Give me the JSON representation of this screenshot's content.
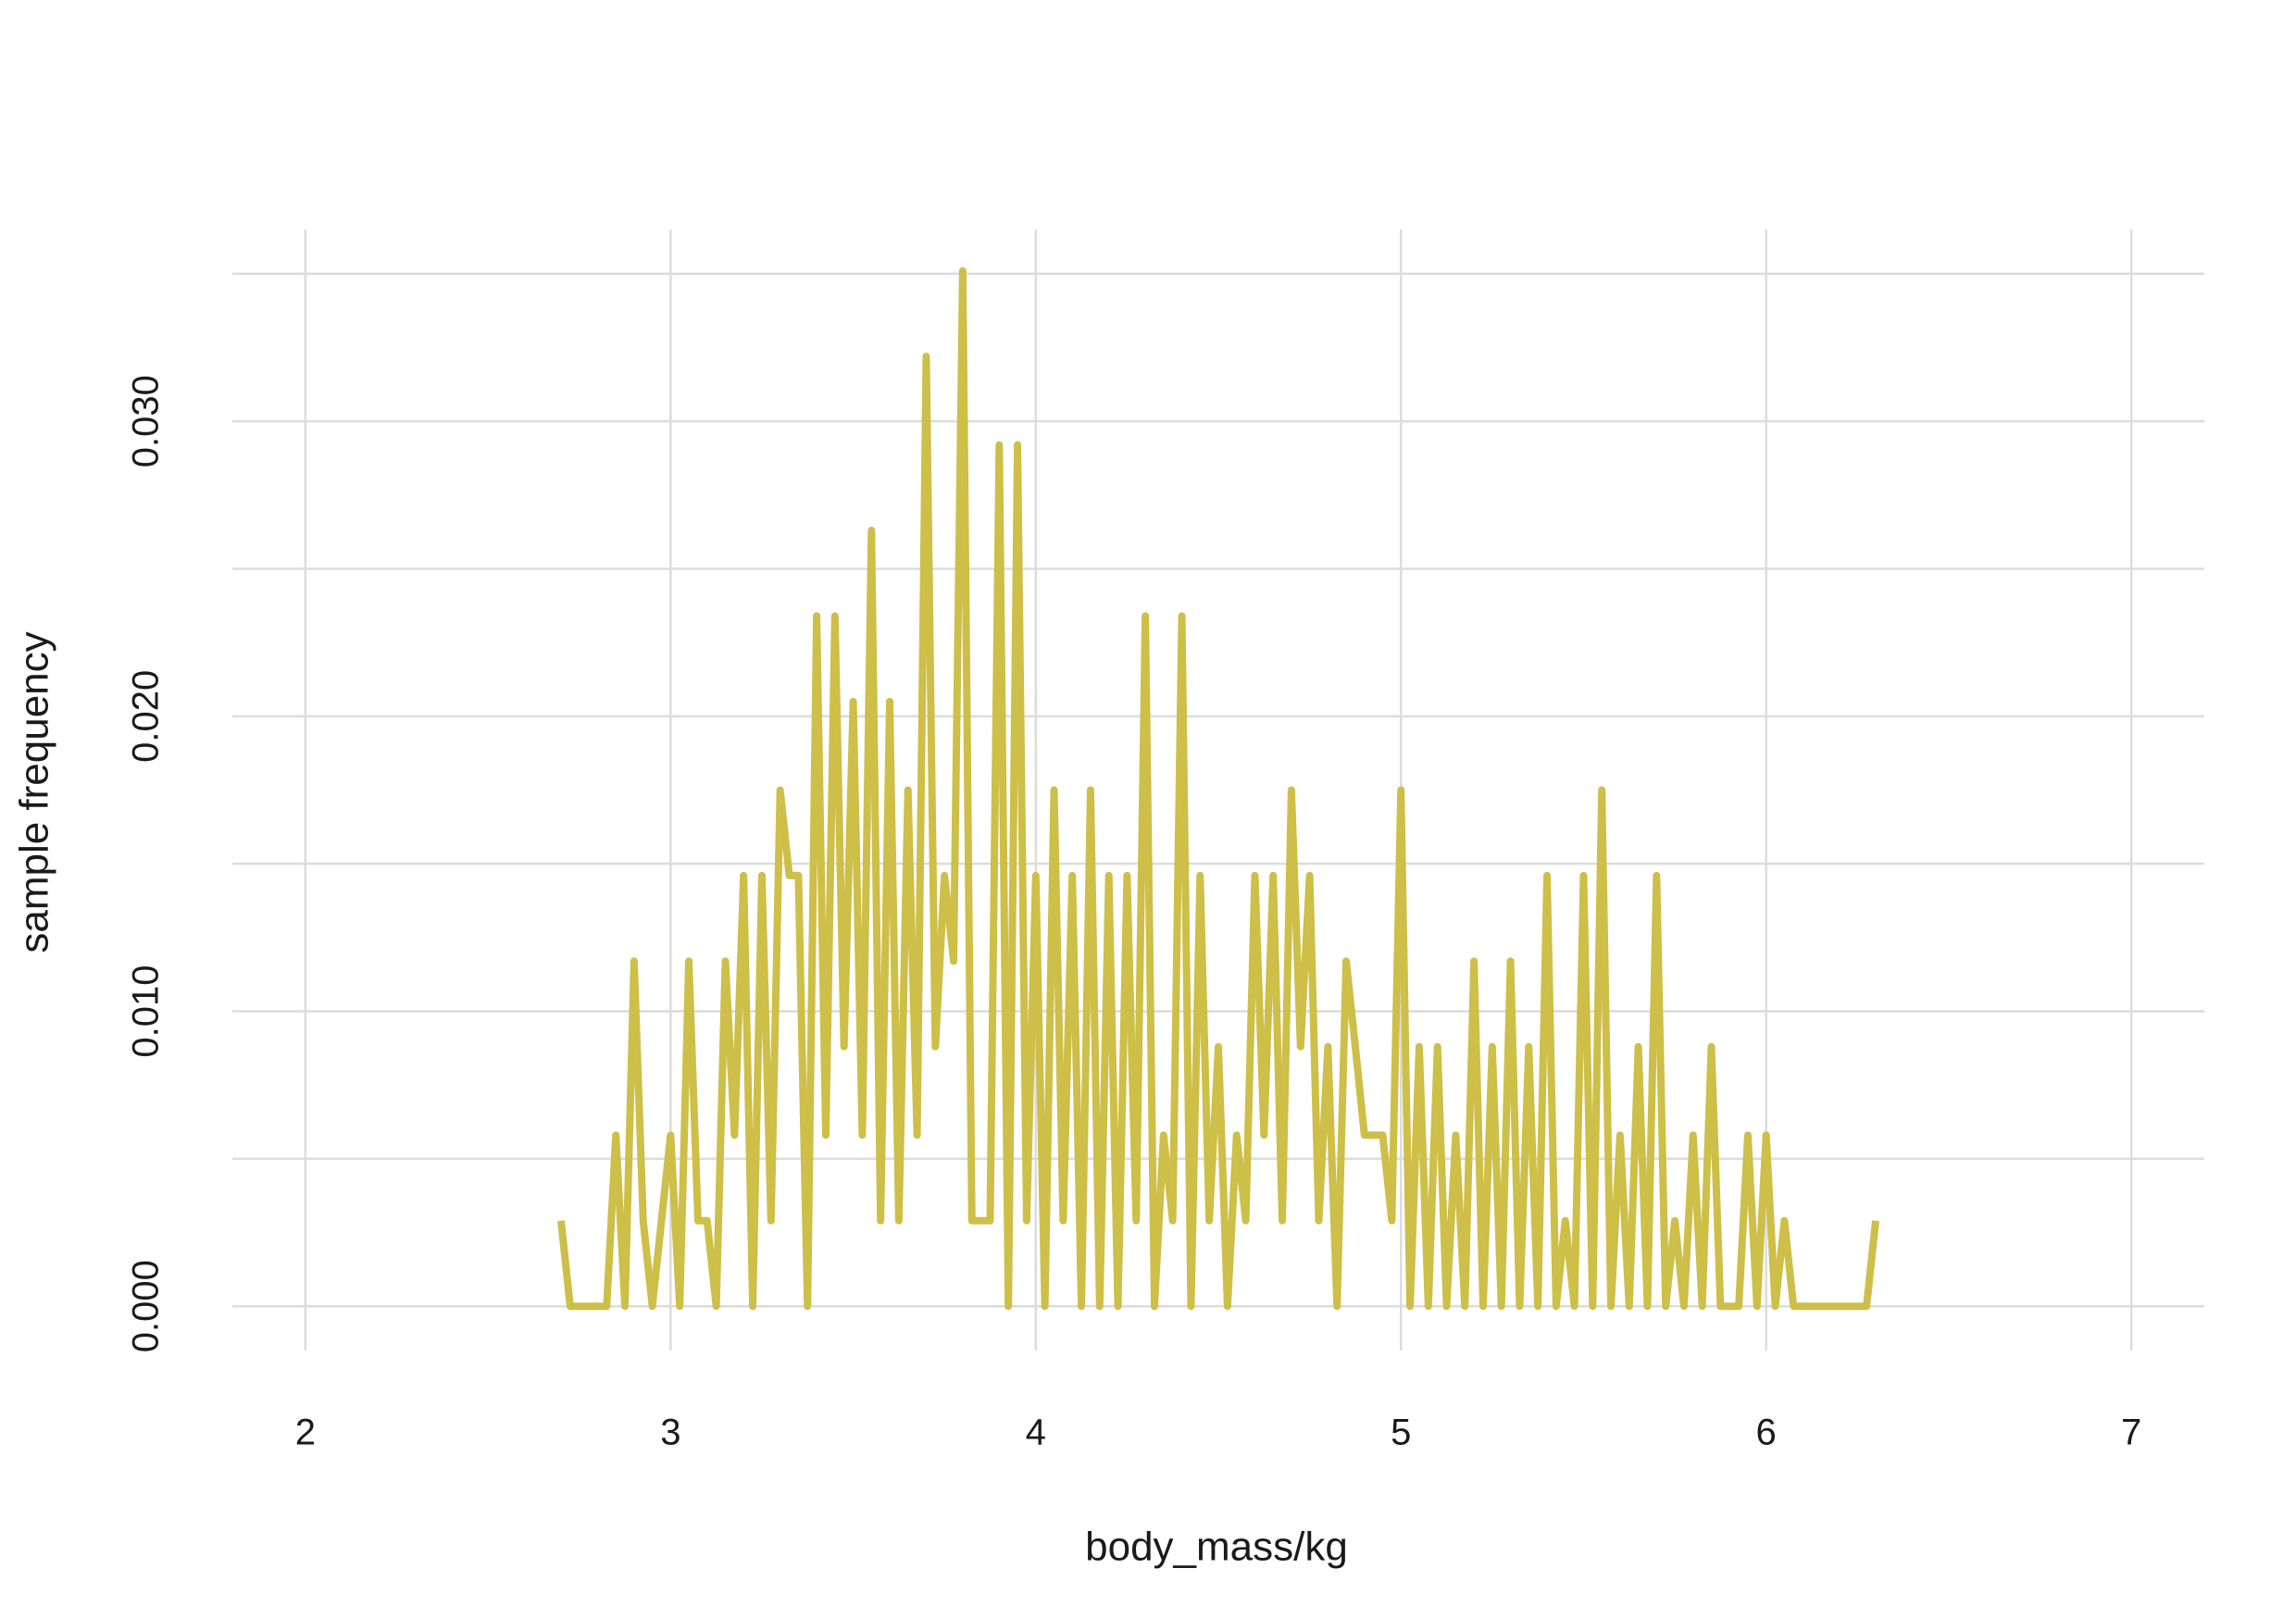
{
  "chart_data": {
    "type": "line",
    "x_label": "body_mass/kg",
    "y_label": "sample frequency",
    "color": "#cdbf48",
    "grid": true,
    "xlim": [
      1.8,
      7.2
    ],
    "xticks": [
      2,
      3,
      4,
      5,
      6,
      7
    ],
    "ylim": [
      -0.0015,
      0.0365
    ],
    "yticks": [
      {
        "value": 0,
        "label": "0.000"
      },
      {
        "value": 0.01,
        "label": "0.010"
      },
      {
        "value": 0.02,
        "label": "0.020"
      },
      {
        "value": 0.03,
        "label": "0.030"
      }
    ],
    "yminor": [
      0.005,
      0.015,
      0.025,
      0.035
    ],
    "x": [
      2.7,
      2.725,
      2.75,
      2.775,
      2.8,
      2.825,
      2.85,
      2.875,
      2.9,
      2.925,
      2.95,
      2.975,
      3.0,
      3.025,
      3.05,
      3.075,
      3.1,
      3.125,
      3.15,
      3.175,
      3.2,
      3.225,
      3.25,
      3.275,
      3.3,
      3.325,
      3.35,
      3.375,
      3.4,
      3.425,
      3.45,
      3.475,
      3.5,
      3.525,
      3.55,
      3.575,
      3.6,
      3.625,
      3.65,
      3.675,
      3.7,
      3.725,
      3.75,
      3.775,
      3.8,
      3.825,
      3.85,
      3.875,
      3.9,
      3.925,
      3.95,
      3.975,
      4.0,
      4.025,
      4.05,
      4.075,
      4.1,
      4.125,
      4.15,
      4.175,
      4.2,
      4.225,
      4.25,
      4.275,
      4.3,
      4.325,
      4.35,
      4.375,
      4.4,
      4.425,
      4.45,
      4.475,
      4.5,
      4.525,
      4.55,
      4.575,
      4.6,
      4.625,
      4.65,
      4.675,
      4.7,
      4.725,
      4.75,
      4.775,
      4.8,
      4.825,
      4.85,
      4.875,
      4.9,
      4.925,
      4.95,
      4.975,
      5.0,
      5.025,
      5.05,
      5.075,
      5.1,
      5.125,
      5.15,
      5.175,
      5.2,
      5.225,
      5.25,
      5.275,
      5.3,
      5.325,
      5.35,
      5.375,
      5.4,
      5.425,
      5.45,
      5.475,
      5.5,
      5.525,
      5.55,
      5.575,
      5.6,
      5.625,
      5.65,
      5.675,
      5.7,
      5.725,
      5.75,
      5.775,
      5.8,
      5.825,
      5.85,
      5.875,
      5.9,
      5.925,
      5.95,
      5.975,
      6.0,
      6.025,
      6.05,
      6.075,
      6.1,
      6.125,
      6.15,
      6.175,
      6.2,
      6.225,
      6.25,
      6.275,
      6.3
    ],
    "values": [
      0.0029,
      0,
      0,
      0,
      0,
      0,
      0.0058,
      0,
      0.0117,
      0.0029,
      0,
      0.0029,
      0.0058,
      0,
      0.0117,
      0.0029,
      0.0029,
      0,
      0.0117,
      0.0058,
      0.0146,
      0,
      0.0146,
      0.0029,
      0.0175,
      0.0146,
      0.0146,
      0,
      0.0234,
      0.0058,
      0.0234,
      0.0088,
      0.0205,
      0.0058,
      0.0263,
      0.0029,
      0.0205,
      0.0029,
      0.0175,
      0.0058,
      0.0322,
      0.0088,
      0.0146,
      0.0117,
      0.0351,
      0.0029,
      0.0029,
      0.0029,
      0.0292,
      0,
      0.0292,
      0.0029,
      0.0146,
      0,
      0.0175,
      0.0029,
      0.0146,
      0,
      0.0175,
      0,
      0.0146,
      0,
      0.0146,
      0.0029,
      0.0234,
      0,
      0.0058,
      0.0029,
      0.0234,
      0,
      0.0146,
      0.0029,
      0.0088,
      0,
      0.0058,
      0.0029,
      0.0146,
      0.0058,
      0.0146,
      0.0029,
      0.0175,
      0.0088,
      0.0146,
      0.0029,
      0.0088,
      0,
      0.0117,
      0.0088,
      0.0058,
      0.0058,
      0.0058,
      0.0029,
      0.0175,
      0,
      0.0088,
      0,
      0.0088,
      0,
      0.0058,
      0,
      0.0117,
      0,
      0.0088,
      0,
      0.0117,
      0,
      0.0088,
      0,
      0.0146,
      0,
      0.0029,
      0,
      0.0146,
      0,
      0.0175,
      0,
      0.0058,
      0,
      0.0088,
      0,
      0.0146,
      0,
      0.0029,
      0,
      0.0058,
      0,
      0.0088,
      0,
      0,
      0,
      0.0058,
      0,
      0.0058,
      0,
      0.0029,
      0,
      0,
      0,
      0,
      0,
      0,
      0,
      0,
      0,
      0.0029
    ]
  }
}
